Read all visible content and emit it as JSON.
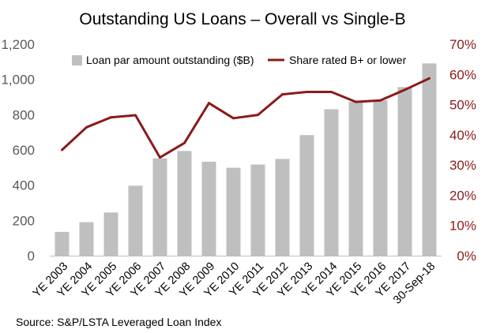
{
  "chart_data": {
    "type": "bar+line",
    "title": "Outstanding US Loans – Overall vs Single-B",
    "categories": [
      "YE 2003",
      "YE 2004",
      "YE 2005",
      "YE 2006",
      "YE 2007",
      "YE 2008",
      "YE 2009",
      "YE 2010",
      "YE 2011",
      "YE 2012",
      "YE 2013",
      "YE 2014",
      "YE 2015",
      "YE 2016",
      "YE 2017",
      "30-Sep-18"
    ],
    "series": [
      {
        "name": "Loan par amount outstanding ($B)",
        "type": "bar",
        "axis": "left",
        "color": "#bfbfbf",
        "values": [
          135,
          190,
          245,
          397,
          552,
          594,
          533,
          499,
          517,
          549,
          684,
          831,
          873,
          882,
          957,
          1091
        ]
      },
      {
        "name": "Share rated B+ or lower",
        "type": "line",
        "axis": "right",
        "color": "#8b1a1a",
        "values": [
          35.0,
          42.5,
          45.8,
          46.5,
          32.5,
          37.3,
          50.5,
          45.5,
          46.6,
          53.4,
          54.2,
          54.2,
          50.9,
          51.4,
          54.9,
          58.7
        ]
      }
    ],
    "y_left": {
      "min": 0,
      "max": 1200,
      "ticks": [
        "0",
        "200",
        "400",
        "600",
        "800",
        "1,000",
        "1,200"
      ]
    },
    "y_right": {
      "min": 0,
      "max": 70,
      "ticks": [
        "0%",
        "10%",
        "20%",
        "30%",
        "40%",
        "50%",
        "60%",
        "70%"
      ]
    },
    "legend_position": "top",
    "grid": false,
    "source": "Source: S&P/LSTA Leveraged Loan Index"
  }
}
